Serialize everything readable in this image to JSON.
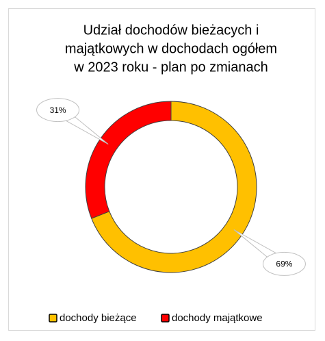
{
  "chart_data": {
    "type": "doughnut",
    "title": [
      "Udział dochodów bieżacych i",
      "majątkowych w dochodach ogółem",
      "w 2023 roku - plan po zmianach"
    ],
    "categories": [
      "dochody bieżące",
      "dochody majątkowe"
    ],
    "values": [
      69,
      31
    ],
    "value_labels": [
      "69%",
      "31%"
    ],
    "colors": [
      "#FFC000",
      "#FF0000"
    ],
    "legend": "bottom"
  }
}
